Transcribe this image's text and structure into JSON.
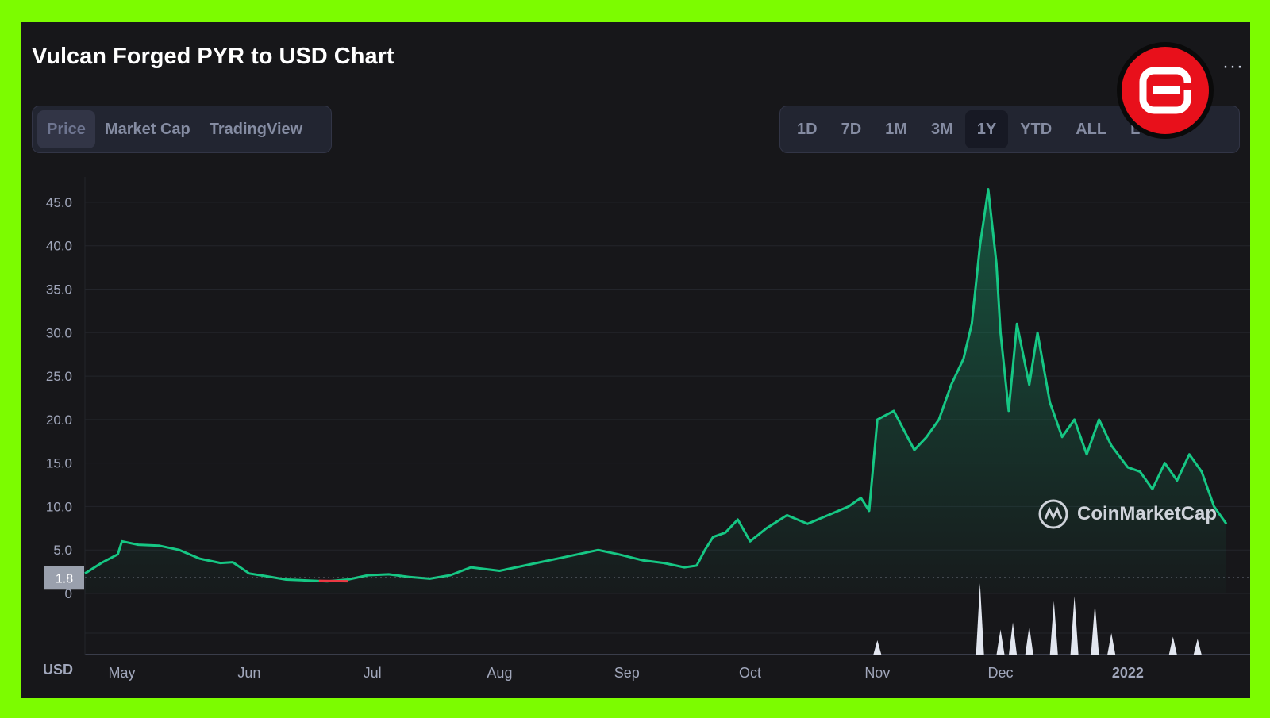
{
  "title": "Vulcan Forged PYR to USD Chart",
  "view_tabs": [
    {
      "label": "Price",
      "active": true
    },
    {
      "label": "Market Cap",
      "active": false
    },
    {
      "label": "TradingView",
      "active": false
    }
  ],
  "ranges": [
    {
      "label": "1D",
      "active": false
    },
    {
      "label": "7D",
      "active": false
    },
    {
      "label": "1M",
      "active": false
    },
    {
      "label": "3M",
      "active": false
    },
    {
      "label": "1Y",
      "active": true
    },
    {
      "label": "YTD",
      "active": false
    },
    {
      "label": "ALL",
      "active": false
    },
    {
      "label": "LOG",
      "active": false
    }
  ],
  "more_label": "···",
  "watermark": "CoinMarketCap",
  "colors": {
    "up": "#16C784",
    "down": "#EA3943",
    "background": "#17171A",
    "volume": "#E2E6EF"
  },
  "chart_data": {
    "type": "line",
    "title": "Vulcan Forged PYR to USD Chart",
    "x_labels": [
      "May",
      "Jun",
      "Jul",
      "Aug",
      "Sep",
      "Oct",
      "Nov",
      "Dec",
      "2022"
    ],
    "x_range": [
      "2021-04-22",
      "2022-01-25"
    ],
    "y_ticks": [
      "0",
      "5.0",
      "10.0",
      "15.0",
      "20.0",
      "25.0",
      "30.0",
      "35.0",
      "40.0",
      "45.0"
    ],
    "ylim": [
      0,
      47
    ],
    "grid": true,
    "reference_line": {
      "value": 1.8,
      "label": "1.8"
    },
    "currency_label": "USD",
    "series": [
      {
        "values_x": [
          "2021-04-22",
          "2021-04-26",
          "2021-04-30",
          "2021-05-01",
          "2021-05-05",
          "2021-05-10",
          "2021-05-15",
          "2021-05-20",
          "2021-05-25",
          "2021-05-28",
          "2021-06-01",
          "2021-06-05",
          "2021-06-10",
          "2021-06-15",
          "2021-06-20",
          "2021-06-25",
          "2021-06-30",
          "2021-07-05",
          "2021-07-10",
          "2021-07-15",
          "2021-07-20",
          "2021-07-25",
          "2021-08-01",
          "2021-08-05",
          "2021-08-10",
          "2021-08-15",
          "2021-08-20",
          "2021-08-25",
          "2021-08-30",
          "2021-09-05",
          "2021-09-10",
          "2021-09-15",
          "2021-09-18",
          "2021-09-20",
          "2021-09-22",
          "2021-09-25",
          "2021-09-28",
          "2021-10-01",
          "2021-10-05",
          "2021-10-10",
          "2021-10-15",
          "2021-10-20",
          "2021-10-25",
          "2021-10-28",
          "2021-10-30",
          "2021-11-01",
          "2021-11-05",
          "2021-11-10",
          "2021-11-13",
          "2021-11-16",
          "2021-11-19",
          "2021-11-22",
          "2021-11-24",
          "2021-11-26",
          "2021-11-28",
          "2021-11-30",
          "2021-12-01",
          "2021-12-03",
          "2021-12-05",
          "2021-12-08",
          "2021-12-10",
          "2021-12-13",
          "2021-12-16",
          "2021-12-19",
          "2021-12-22",
          "2021-12-25",
          "2021-12-28",
          "2022-01-01",
          "2022-01-04",
          "2022-01-07",
          "2022-01-10",
          "2022-01-13",
          "2022-01-16",
          "2022-01-19",
          "2022-01-22",
          "2022-01-25"
        ],
        "values": [
          2.3,
          3.5,
          4.5,
          6.0,
          5.6,
          5.5,
          5.0,
          4.0,
          3.5,
          3.6,
          2.3,
          2.0,
          1.6,
          1.5,
          1.4,
          1.6,
          2.1,
          2.2,
          1.9,
          1.7,
          2.1,
          3.0,
          2.6,
          3.0,
          3.5,
          4.0,
          4.5,
          5.0,
          4.5,
          3.8,
          3.5,
          3.0,
          3.2,
          5.0,
          6.5,
          7.0,
          8.5,
          6.0,
          7.5,
          9.0,
          8.0,
          9.0,
          10.0,
          11.0,
          9.5,
          20.0,
          21.0,
          16.5,
          18.0,
          20.0,
          24.0,
          27.0,
          31.0,
          40.0,
          46.5,
          38.0,
          30.0,
          21.0,
          31.0,
          24.0,
          30.0,
          22.0,
          18.0,
          20.0,
          16.0,
          20.0,
          17.0,
          14.5,
          14.0,
          12.0,
          15.0,
          13.0,
          16.0,
          14.0,
          10.0,
          8.0
        ]
      }
    ],
    "down_segment": [
      "2021-06-18",
      "2021-06-25"
    ],
    "volume_spikes": [
      {
        "x": "2021-11-01",
        "v": 0.2
      },
      {
        "x": "2021-11-26",
        "v": 1.0
      },
      {
        "x": "2021-12-01",
        "v": 0.35
      },
      {
        "x": "2021-12-04",
        "v": 0.45
      },
      {
        "x": "2021-12-08",
        "v": 0.4
      },
      {
        "x": "2021-12-14",
        "v": 0.75
      },
      {
        "x": "2021-12-19",
        "v": 0.82
      },
      {
        "x": "2021-12-24",
        "v": 0.72
      },
      {
        "x": "2021-12-28",
        "v": 0.3
      },
      {
        "x": "2022-01-12",
        "v": 0.25
      },
      {
        "x": "2022-01-18",
        "v": 0.22
      }
    ]
  }
}
